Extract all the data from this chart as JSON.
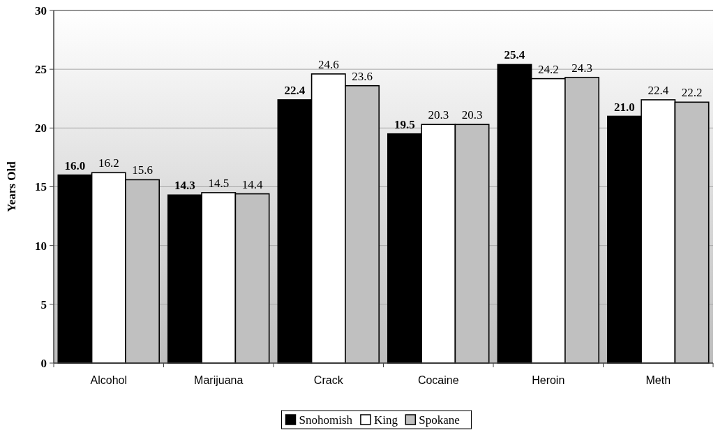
{
  "chart_data": {
    "type": "bar",
    "ylabel": "Years Old",
    "categories": [
      "Alcohol",
      "Marijuana",
      "Crack",
      "Cocaine",
      "Heroin",
      "Meth"
    ],
    "series": [
      {
        "name": "Snohomish",
        "color": "#000000",
        "values": [
          16.0,
          14.3,
          22.4,
          19.5,
          25.4,
          21.0
        ],
        "value_labels": [
          "16.0",
          "14.3",
          "22.4",
          "19.5",
          "25.4",
          "21.0"
        ]
      },
      {
        "name": "King",
        "color": "#ffffff",
        "values": [
          16.2,
          14.5,
          24.6,
          20.3,
          24.2,
          22.4
        ],
        "value_labels": [
          "16.2",
          "14.5",
          "24.6",
          "20.3",
          "24.2",
          "22.4"
        ]
      },
      {
        "name": "Spokane",
        "color": "#c0c0c0",
        "values": [
          15.6,
          14.4,
          23.6,
          20.3,
          24.3,
          22.2
        ],
        "value_labels": [
          "15.6",
          "14.4",
          "23.6",
          "20.3",
          "24.3",
          "22.2"
        ]
      }
    ],
    "ylim": [
      0,
      30
    ],
    "yticks": [
      0,
      5,
      10,
      15,
      20,
      25,
      30
    ],
    "grid": "y",
    "legend": "bottom"
  }
}
